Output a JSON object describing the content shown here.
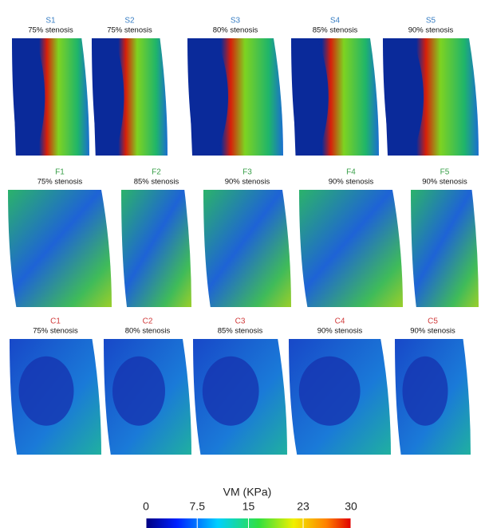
{
  "panels": [
    {
      "label": "S1",
      "stenosis": "75% stenosis"
    },
    {
      "label": "S2",
      "stenosis": "75% stenosis"
    },
    {
      "label": "S3",
      "stenosis": "80% stenosis"
    },
    {
      "label": "S4",
      "stenosis": "85% stenosis"
    },
    {
      "label": "S5",
      "stenosis": "90% stenosis"
    },
    {
      "label": "F1",
      "stenosis": "75% stenosis"
    },
    {
      "label": "F2",
      "stenosis": "85% stenosis"
    },
    {
      "label": "F3",
      "stenosis": "90% stenosis"
    },
    {
      "label": "F4",
      "stenosis": "90% stenosis"
    },
    {
      "label": "F5",
      "stenosis": "90% stenosis"
    },
    {
      "label": "C1",
      "stenosis": "75% stenosis"
    },
    {
      "label": "C2",
      "stenosis": "80% stenosis"
    },
    {
      "label": "C3",
      "stenosis": "85% stenosis"
    },
    {
      "label": "C4",
      "stenosis": "90% stenosis"
    },
    {
      "label": "C5",
      "stenosis": "90% stenosis"
    }
  ],
  "colorbar": {
    "title": "VM (KPa)",
    "range": [
      0,
      30
    ],
    "ticks": [
      0,
      7.5,
      15,
      23,
      30
    ]
  }
}
